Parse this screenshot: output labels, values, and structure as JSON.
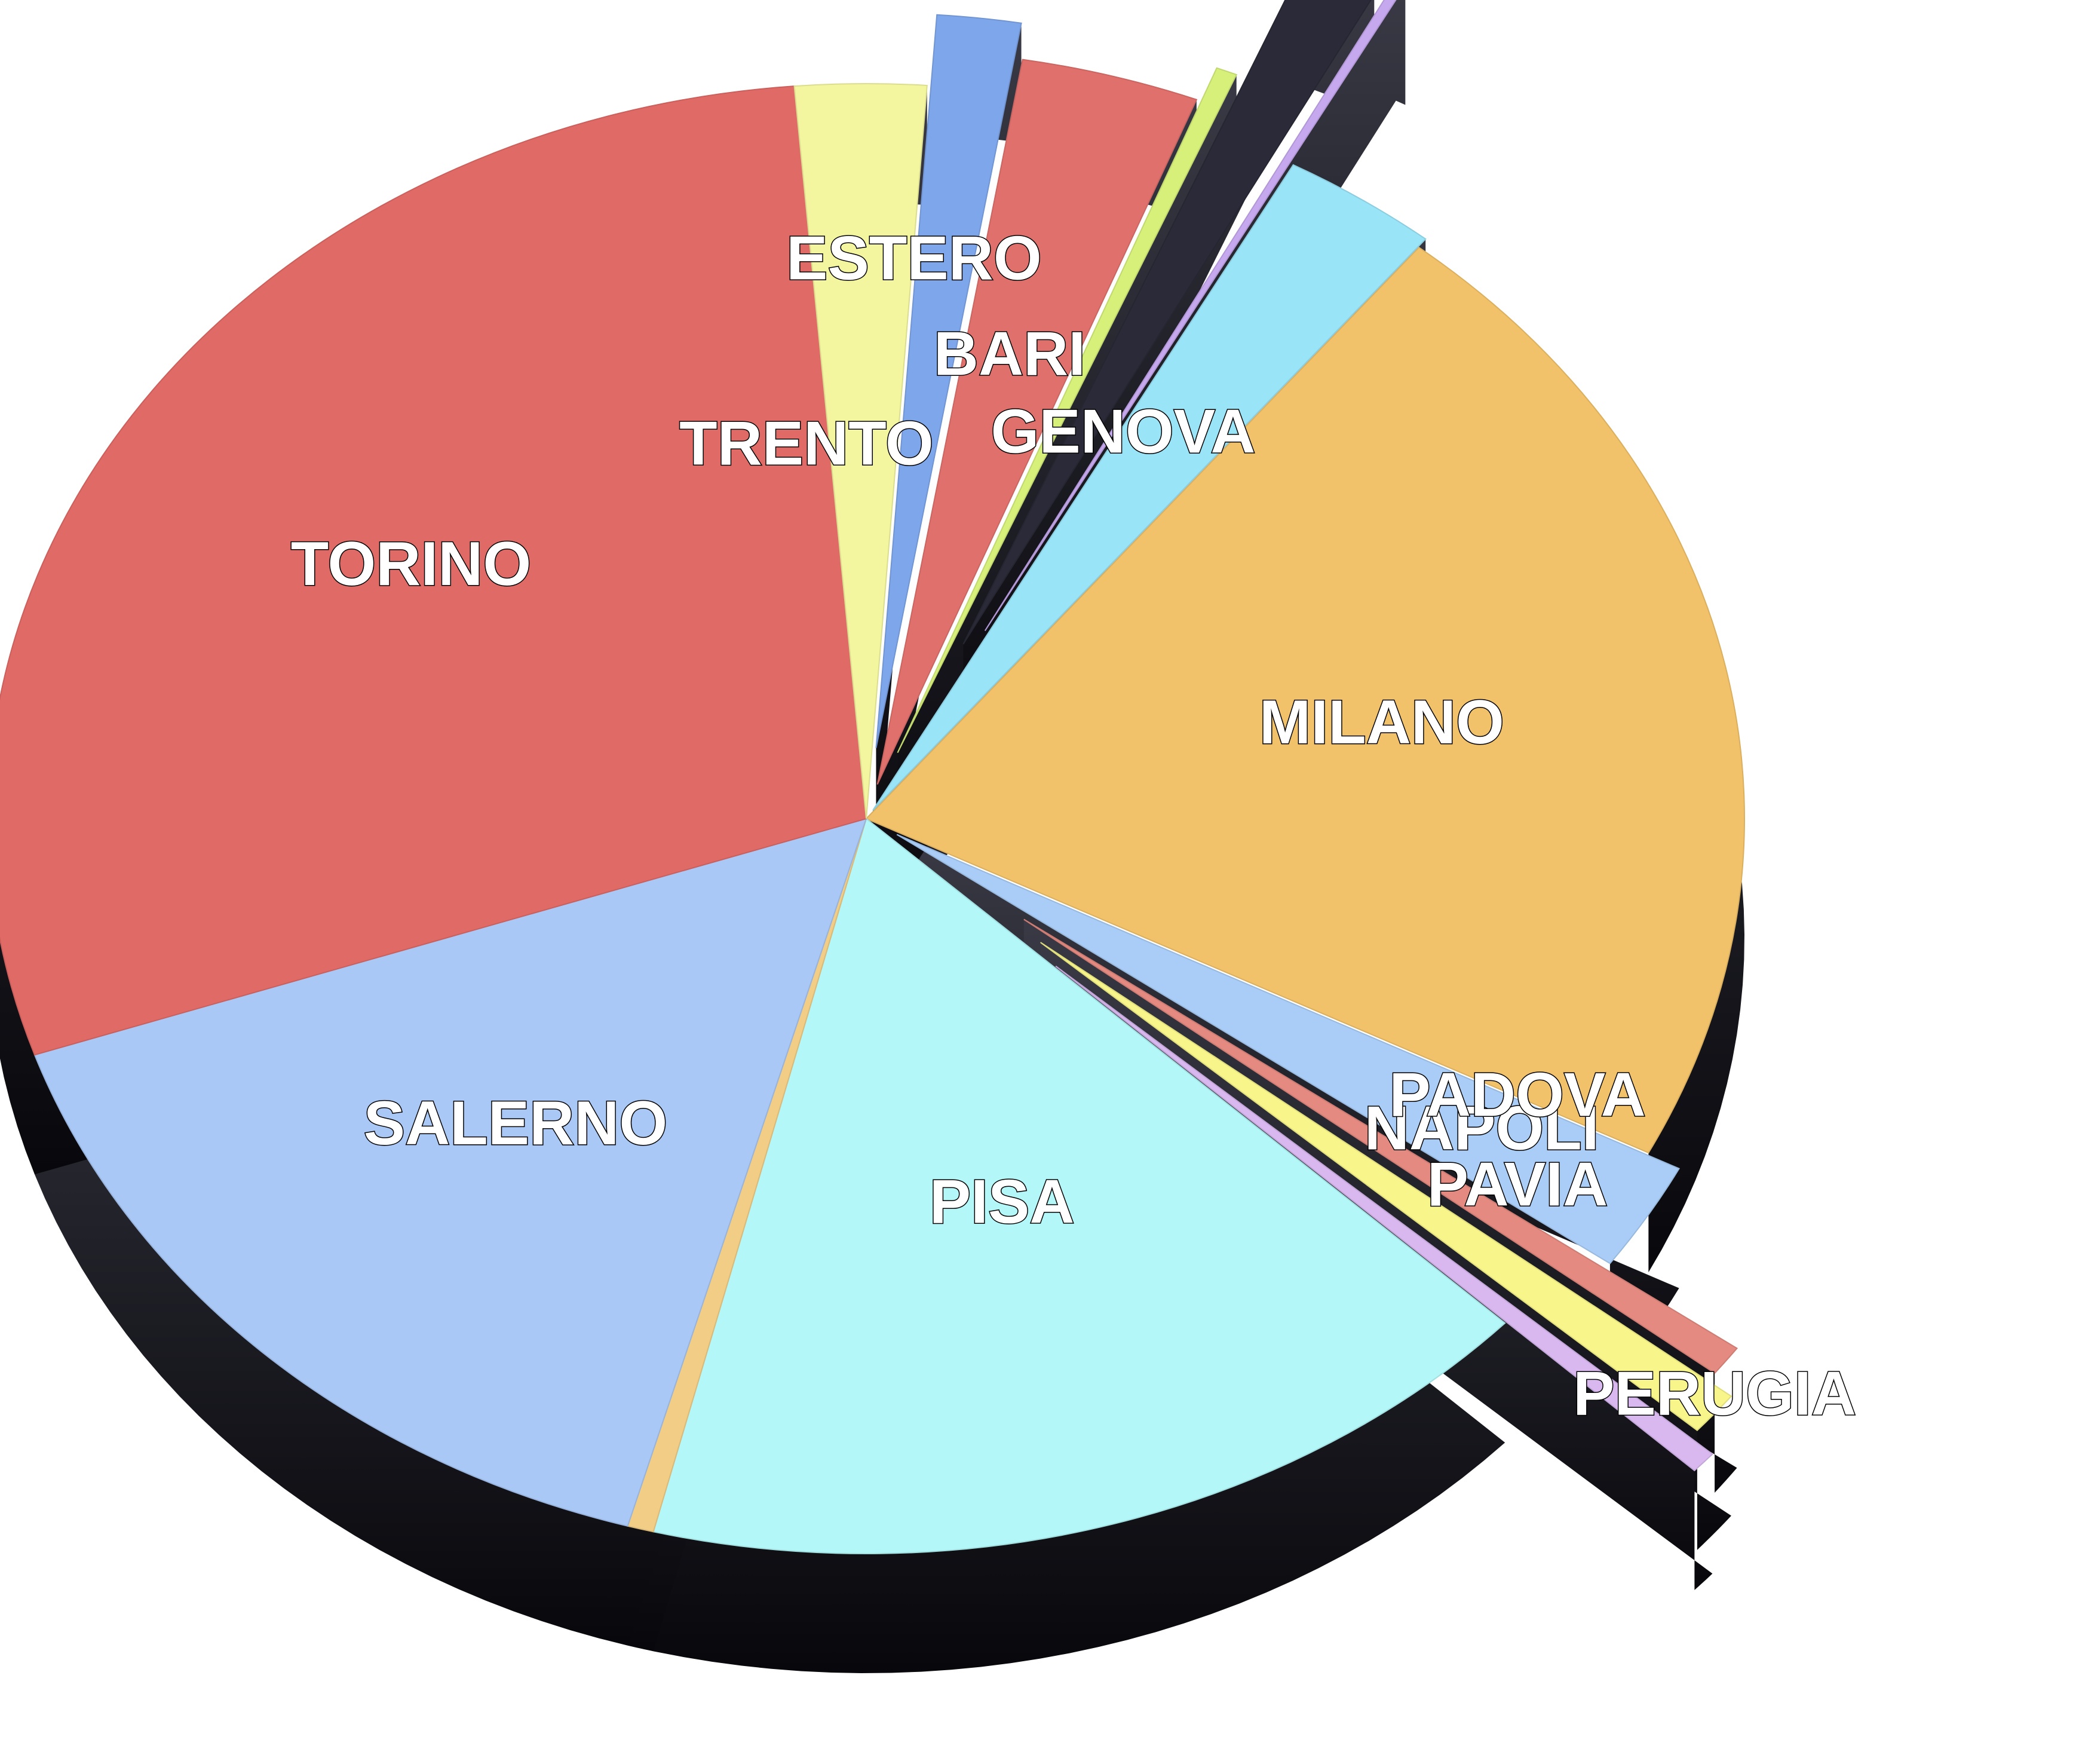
{
  "chart_data": {
    "type": "pie",
    "style": "3d-exploded",
    "slices": [
      {
        "label": "MILANO",
        "value": 22.5,
        "color": "#f2c26a"
      },
      {
        "label": "NAPOLI",
        "value": 2.5,
        "color": "#a9cdf6"
      },
      {
        "label": "PADOVA",
        "value": 0.7,
        "color": "#e48a80"
      },
      {
        "label": "PAVIA",
        "value": 1.0,
        "color": "#f8f58a"
      },
      {
        "label": "PERUGIA",
        "value": 0.5,
        "color": "#d9b8f0"
      },
      {
        "label": "PISA",
        "value": 17.5,
        "color": "#b3f7f8"
      },
      {
        "label": "",
        "value": 0.5,
        "color": "#f2cd86"
      },
      {
        "label": "SALERNO",
        "value": 16.0,
        "color": "#a9c8f6"
      },
      {
        "label": "TORINO",
        "value": 30.0,
        "color": "#e06a66"
      },
      {
        "label": "TRENTO",
        "value": 2.5,
        "color": "#f3f59f"
      },
      {
        "label": "ESTERO",
        "value": 1.6,
        "color": "#7ea6ea"
      },
      {
        "label": "BARI",
        "value": 3.4,
        "color": "#e0706c"
      },
      {
        "label": "",
        "value": 0.4,
        "color": "#d6f07a"
      },
      {
        "label": "GENOVA",
        "value": 1.5,
        "color": "#2a2a38"
      },
      {
        "label": "",
        "value": 0.2,
        "color": "#c6a8ee"
      },
      {
        "label": "",
        "value": 3.0,
        "color": "#9ae4f8"
      }
    ]
  }
}
